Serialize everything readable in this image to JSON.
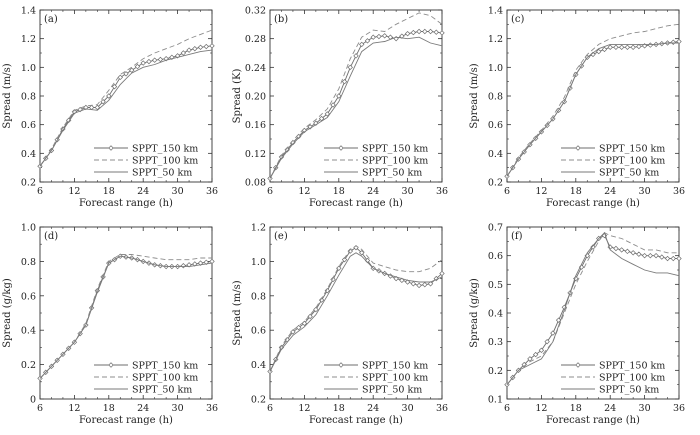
{
  "figure": {
    "legend_placement": "bottom-right",
    "series_styles": [
      {
        "name": "SPPT_150 km",
        "stroke": "#6e6e6e",
        "dash": "solid",
        "marker": "diamond"
      },
      {
        "name": "SPPT_100 km",
        "stroke": "#8c8c8c",
        "dash": "dashed",
        "marker": "none"
      },
      {
        "name": "SPPT_50 km",
        "stroke": "#7a7a7a",
        "dash": "solid",
        "marker": "none"
      }
    ]
  },
  "chart_data": [
    {
      "type": "line",
      "panel_label": "(a)",
      "xlabel": "Forecast range (h)",
      "ylabel": "Spread (m/s)",
      "xlim": [
        6,
        36
      ],
      "ylim": [
        0.2,
        1.4
      ],
      "xticks": [
        6,
        12,
        18,
        24,
        30,
        36
      ],
      "yticks": [
        0.2,
        0.4,
        0.6,
        0.8,
        1.0,
        1.2,
        1.4
      ],
      "ytick_labels": [
        "0.2",
        "0.4",
        "0.6",
        "0.8",
        "1.0",
        "1.2",
        "1.4"
      ],
      "x": [
        6,
        8,
        10,
        12,
        14,
        16,
        18,
        20,
        22,
        24,
        26,
        28,
        30,
        32,
        34,
        36
      ],
      "series": [
        {
          "name": "SPPT_150 km",
          "values": [
            0.31,
            0.42,
            0.57,
            0.69,
            0.72,
            0.72,
            0.8,
            0.93,
            0.98,
            1.03,
            1.05,
            1.06,
            1.08,
            1.12,
            1.14,
            1.15
          ]
        },
        {
          "name": "SPPT_100 km",
          "values": [
            0.31,
            0.43,
            0.58,
            0.7,
            0.73,
            0.74,
            0.84,
            0.95,
            1.0,
            1.06,
            1.1,
            1.13,
            1.16,
            1.2,
            1.23,
            1.26
          ]
        },
        {
          "name": "SPPT_50 km",
          "values": [
            0.31,
            0.42,
            0.56,
            0.68,
            0.71,
            0.7,
            0.77,
            0.88,
            0.96,
            1.0,
            1.02,
            1.05,
            1.07,
            1.09,
            1.11,
            1.12
          ]
        }
      ],
      "legend": [
        "SPPT_150 km",
        "SPPT_100 km",
        "SPPT_50 km"
      ]
    },
    {
      "type": "line",
      "panel_label": "(b)",
      "xlabel": "Forecast range (h)",
      "ylabel": "Spread (K)",
      "xlim": [
        6,
        36
      ],
      "ylim": [
        0.08,
        0.32
      ],
      "xticks": [
        6,
        12,
        18,
        24,
        30,
        36
      ],
      "yticks": [
        0.08,
        0.12,
        0.16,
        0.2,
        0.24,
        0.28,
        0.32
      ],
      "ytick_labels": [
        "0.08",
        "0.12",
        "0.16",
        "0.20",
        "0.24",
        "0.28",
        "0.32"
      ],
      "x": [
        6,
        8,
        10,
        12,
        14,
        16,
        18,
        20,
        22,
        24,
        26,
        28,
        30,
        32,
        34,
        36
      ],
      "series": [
        {
          "name": "SPPT_150 km",
          "values": [
            0.085,
            0.115,
            0.135,
            0.152,
            0.162,
            0.175,
            0.2,
            0.24,
            0.272,
            0.282,
            0.284,
            0.28,
            0.287,
            0.29,
            0.29,
            0.288
          ]
        },
        {
          "name": "SPPT_100 km",
          "values": [
            0.085,
            0.117,
            0.138,
            0.155,
            0.167,
            0.182,
            0.21,
            0.252,
            0.282,
            0.292,
            0.29,
            0.3,
            0.308,
            0.316,
            0.312,
            0.3
          ]
        },
        {
          "name": "SPPT_50 km",
          "values": [
            0.085,
            0.113,
            0.133,
            0.15,
            0.16,
            0.17,
            0.192,
            0.228,
            0.262,
            0.274,
            0.276,
            0.282,
            0.28,
            0.282,
            0.274,
            0.27
          ]
        }
      ],
      "legend": [
        "SPPT_150 km",
        "SPPT_100 km",
        "SPPT_50 km"
      ]
    },
    {
      "type": "line",
      "panel_label": "(c)",
      "xlabel": "Forecast range (h)",
      "ylabel": "Spread (m/s)",
      "xlim": [
        6,
        36
      ],
      "ylim": [
        0.2,
        1.4
      ],
      "xticks": [
        6,
        12,
        18,
        24,
        30,
        36
      ],
      "yticks": [
        0.2,
        0.4,
        0.6,
        0.8,
        1.0,
        1.2,
        1.4
      ],
      "ytick_labels": [
        "0.2",
        "0.4",
        "0.6",
        "0.8",
        "1.0",
        "1.2",
        "1.4"
      ],
      "x": [
        6,
        8,
        10,
        12,
        14,
        16,
        18,
        20,
        22,
        24,
        26,
        28,
        30,
        32,
        34,
        36
      ],
      "series": [
        {
          "name": "SPPT_150 km",
          "values": [
            0.24,
            0.36,
            0.46,
            0.55,
            0.64,
            0.76,
            0.95,
            1.07,
            1.11,
            1.14,
            1.14,
            1.14,
            1.15,
            1.16,
            1.17,
            1.18
          ]
        },
        {
          "name": "SPPT_100 km",
          "values": [
            0.24,
            0.37,
            0.47,
            0.56,
            0.66,
            0.79,
            0.98,
            1.09,
            1.16,
            1.2,
            1.22,
            1.24,
            1.25,
            1.27,
            1.29,
            1.3
          ]
        },
        {
          "name": "SPPT_50 km",
          "values": [
            0.24,
            0.36,
            0.46,
            0.55,
            0.64,
            0.76,
            0.95,
            1.07,
            1.13,
            1.16,
            1.16,
            1.16,
            1.16,
            1.16,
            1.17,
            1.17
          ]
        }
      ],
      "legend": [
        "SPPT_150 km",
        "SPPT_100 km",
        "SPPT_50 km"
      ]
    },
    {
      "type": "line",
      "panel_label": "(d)",
      "xlabel": "Forecast range (h)",
      "ylabel": "Spread (g/kg)",
      "xlim": [
        6,
        36
      ],
      "ylim": [
        0.0,
        1.0
      ],
      "xticks": [
        6,
        12,
        18,
        24,
        30,
        36
      ],
      "yticks": [
        0.0,
        0.2,
        0.4,
        0.6,
        0.8,
        1.0
      ],
      "ytick_labels": [
        "0",
        "0.2",
        "0.4",
        "0.6",
        "0.8",
        "1.0"
      ],
      "x": [
        6,
        8,
        10,
        12,
        14,
        16,
        18,
        20,
        22,
        24,
        26,
        28,
        30,
        32,
        34,
        36
      ],
      "series": [
        {
          "name": "SPPT_150 km",
          "values": [
            0.12,
            0.19,
            0.26,
            0.33,
            0.43,
            0.63,
            0.79,
            0.83,
            0.82,
            0.8,
            0.78,
            0.77,
            0.77,
            0.78,
            0.79,
            0.8
          ]
        },
        {
          "name": "SPPT_100 km",
          "values": [
            0.12,
            0.19,
            0.26,
            0.33,
            0.44,
            0.64,
            0.8,
            0.84,
            0.84,
            0.83,
            0.82,
            0.81,
            0.81,
            0.81,
            0.82,
            0.82
          ]
        },
        {
          "name": "SPPT_50 km",
          "values": [
            0.12,
            0.19,
            0.26,
            0.33,
            0.43,
            0.62,
            0.79,
            0.83,
            0.82,
            0.8,
            0.78,
            0.77,
            0.77,
            0.77,
            0.78,
            0.79
          ]
        }
      ],
      "legend": [
        "SPPT_150 km",
        "SPPT_100 km",
        "SPPT_50 km"
      ]
    },
    {
      "type": "line",
      "panel_label": "(e)",
      "xlabel": "Forecast range (h)",
      "ylabel": "Spread (m/s)",
      "xlim": [
        6,
        36
      ],
      "ylim": [
        0.2,
        1.2
      ],
      "xticks": [
        6,
        12,
        18,
        24,
        30,
        36
      ],
      "yticks": [
        0.2,
        0.4,
        0.6,
        0.8,
        1.0,
        1.2
      ],
      "ytick_labels": [
        "0.2",
        "0.4",
        "0.6",
        "0.8",
        "1.0",
        "1.2"
      ],
      "x": [
        6,
        8,
        10,
        12,
        14,
        16,
        18,
        20,
        21,
        22,
        24,
        26,
        28,
        30,
        32,
        34,
        36
      ],
      "series": [
        {
          "name": "SPPT_150 km",
          "values": [
            0.36,
            0.5,
            0.59,
            0.64,
            0.72,
            0.83,
            0.96,
            1.06,
            1.08,
            1.05,
            0.96,
            0.93,
            0.9,
            0.88,
            0.86,
            0.87,
            0.93
          ]
        },
        {
          "name": "SPPT_100 km",
          "values": [
            0.36,
            0.51,
            0.6,
            0.65,
            0.73,
            0.84,
            0.97,
            1.07,
            1.09,
            1.07,
            0.99,
            0.97,
            0.95,
            0.94,
            0.94,
            0.96,
            1.01
          ]
        },
        {
          "name": "SPPT_50 km",
          "values": [
            0.36,
            0.49,
            0.57,
            0.62,
            0.69,
            0.8,
            0.92,
            1.03,
            1.05,
            1.03,
            0.96,
            0.93,
            0.91,
            0.89,
            0.88,
            0.88,
            0.91
          ]
        }
      ],
      "legend": [
        "SPPT_150 km",
        "SPPT_100 km",
        "SPPT_50 km"
      ]
    },
    {
      "type": "line",
      "panel_label": "(f)",
      "xlabel": "Forecast range (h)",
      "ylabel": "Spread (g/kg)",
      "xlim": [
        6,
        36
      ],
      "ylim": [
        0.1,
        0.7
      ],
      "xticks": [
        6,
        12,
        18,
        24,
        30,
        36
      ],
      "yticks": [
        0.1,
        0.2,
        0.3,
        0.4,
        0.5,
        0.6,
        0.7
      ],
      "ytick_labels": [
        "0.1",
        "0.2",
        "0.3",
        "0.4",
        "0.5",
        "0.6",
        "0.7"
      ],
      "x": [
        6,
        8,
        10,
        12,
        14,
        16,
        18,
        20,
        22,
        23,
        24,
        26,
        28,
        30,
        32,
        34,
        36
      ],
      "series": [
        {
          "name": "SPPT_150 km",
          "values": [
            0.15,
            0.2,
            0.24,
            0.27,
            0.33,
            0.42,
            0.52,
            0.6,
            0.66,
            0.67,
            0.63,
            0.62,
            0.61,
            0.6,
            0.6,
            0.59,
            0.59
          ]
        },
        {
          "name": "SPPT_100 km",
          "values": [
            0.15,
            0.2,
            0.23,
            0.25,
            0.3,
            0.4,
            0.5,
            0.58,
            0.65,
            0.68,
            0.67,
            0.66,
            0.64,
            0.62,
            0.62,
            0.61,
            0.61
          ]
        },
        {
          "name": "SPPT_50 km",
          "values": [
            0.15,
            0.2,
            0.22,
            0.24,
            0.3,
            0.41,
            0.53,
            0.61,
            0.66,
            0.68,
            0.62,
            0.59,
            0.57,
            0.55,
            0.54,
            0.54,
            0.53
          ]
        }
      ],
      "legend": [
        "SPPT_150 km",
        "SPPT_100 km",
        "SPPT_50 km"
      ]
    }
  ]
}
